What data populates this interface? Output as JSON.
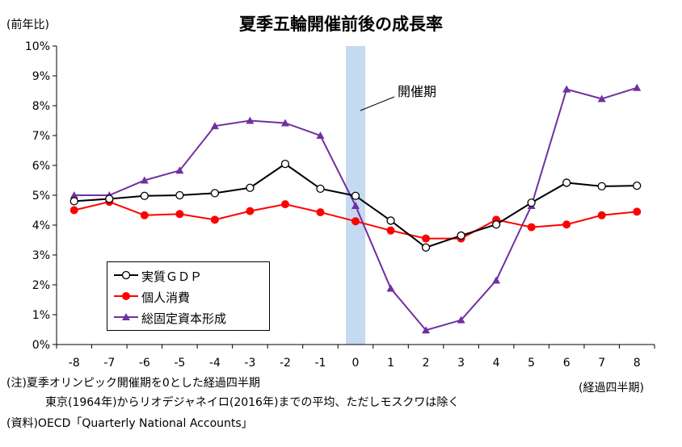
{
  "title": "夏季五輪開催前後の成長率",
  "y_unit_label": "(前年比)",
  "x_unit_label": "(経過四半期)",
  "notes": [
    "(注)夏季オリンピック開催期を0とした経過四半期",
    "東京(1964年)からリオデジャネイロ(2016年)までの平均、ただしモスクワは除く"
  ],
  "source": "(資料)OECD「Quarterly National Accounts」",
  "chart_data": {
    "type": "line",
    "x": [
      -8,
      -7,
      -6,
      -5,
      -4,
      -3,
      -2,
      -1,
      0,
      1,
      2,
      3,
      4,
      5,
      6,
      7,
      8
    ],
    "x_tick_labels": [
      "-8",
      "-7",
      "-6",
      "-5",
      "-4",
      "-3",
      "-2",
      "-1",
      "0",
      "1",
      "2",
      "3",
      "4",
      "5",
      "6",
      "7",
      "8"
    ],
    "y_tick_labels": [
      "0%",
      "1%",
      "2%",
      "3%",
      "4%",
      "5%",
      "6%",
      "7%",
      "8%",
      "9%",
      "10%"
    ],
    "ylim": [
      0,
      10
    ],
    "y_unit": "%",
    "grid": false,
    "highlight": {
      "x": 0,
      "label": "開催期",
      "color": "#c5d9f1"
    },
    "series": [
      {
        "name": "実質ＧＤＰ",
        "color": "#000000",
        "marker": "circle-open",
        "values": [
          4.8,
          4.88,
          4.98,
          5.0,
          5.07,
          5.25,
          6.05,
          5.22,
          4.98,
          4.15,
          3.25,
          3.65,
          4.02,
          4.75,
          5.42,
          5.3,
          5.32
        ]
      },
      {
        "name": "個人消費",
        "color": "#ff0000",
        "marker": "circle",
        "values": [
          4.5,
          4.78,
          4.33,
          4.37,
          4.18,
          4.47,
          4.7,
          4.43,
          4.13,
          3.82,
          3.55,
          3.55,
          4.18,
          3.93,
          4.02,
          4.33,
          4.45
        ]
      },
      {
        "name": "総固定資本形成",
        "color": "#7030a0",
        "marker": "triangle",
        "values": [
          5.0,
          5.0,
          5.5,
          5.83,
          7.32,
          7.5,
          7.42,
          7.0,
          4.65,
          1.88,
          0.48,
          0.82,
          2.15,
          4.65,
          8.55,
          8.23,
          8.6
        ]
      }
    ]
  }
}
